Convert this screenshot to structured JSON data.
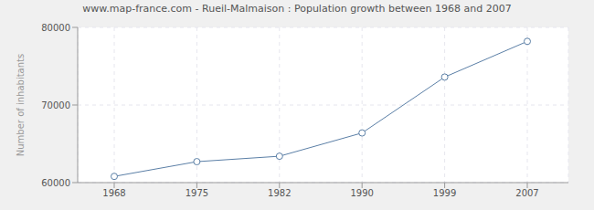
{
  "chart_data": {
    "type": "line",
    "title": "www.map-france.com - Rueil-Malmaison : Population growth between 1968 and 2007",
    "y_label": "Number of inhabitants",
    "categories": [
      "1968",
      "1975",
      "1982",
      "1990",
      "1999",
      "2007"
    ],
    "values": [
      60800,
      62700,
      63400,
      66400,
      73600,
      78200
    ],
    "color": "#5b7fa6",
    "marker": "circle",
    "ylim": [
      60000,
      80000
    ],
    "yticks": [
      60000,
      70000,
      80000
    ],
    "grid": true
  }
}
